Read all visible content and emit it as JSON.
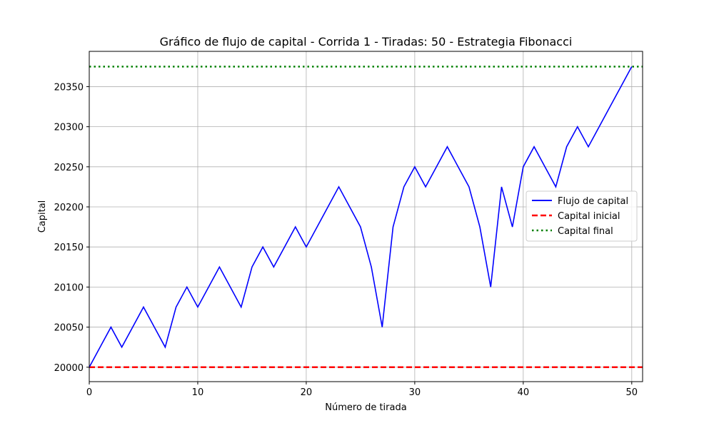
{
  "chart_data": {
    "type": "line",
    "title": "Gráfico de flujo de capital - Corrida 1 - Tiradas: 50 - Estrategia Fibonacci",
    "xlabel": "Número de tirada",
    "ylabel": "Capital",
    "xlim": [
      0,
      51
    ],
    "ylim": [
      19982,
      20394
    ],
    "xticks": [
      0,
      10,
      20,
      30,
      40,
      50
    ],
    "yticks": [
      20000,
      20050,
      20100,
      20150,
      20200,
      20250,
      20300,
      20350
    ],
    "grid": true,
    "legend_position": "center-right",
    "series": [
      {
        "name": "Flujo de capital",
        "style": "solid",
        "color": "#0000ff",
        "x": [
          0,
          1,
          2,
          3,
          4,
          5,
          6,
          7,
          8,
          9,
          10,
          11,
          12,
          13,
          14,
          15,
          16,
          17,
          18,
          19,
          20,
          21,
          22,
          23,
          24,
          25,
          26,
          27,
          28,
          29,
          30,
          31,
          32,
          33,
          34,
          35,
          36,
          37,
          38,
          39,
          40,
          41,
          42,
          43,
          44,
          45,
          46,
          47,
          48,
          49,
          50
        ],
        "y": [
          20000,
          20025,
          20050,
          20025,
          20050,
          20075,
          20050,
          20025,
          20075,
          20100,
          20075,
          20100,
          20125,
          20100,
          20075,
          20125,
          20150,
          20125,
          20150,
          20175,
          20150,
          20175,
          20200,
          20225,
          20200,
          20175,
          20125,
          20050,
          20175,
          20225,
          20250,
          20225,
          20250,
          20275,
          20250,
          20225,
          20175,
          20100,
          20225,
          20175,
          20250,
          20275,
          20250,
          20225,
          20275,
          20300,
          20275,
          20300,
          20325,
          20350,
          20375
        ]
      },
      {
        "name": "Capital inicial",
        "style": "dashed",
        "color": "#ff0000",
        "value": 20000
      },
      {
        "name": "Capital final",
        "style": "dotted",
        "color": "#008000",
        "value": 20375
      }
    ]
  }
}
